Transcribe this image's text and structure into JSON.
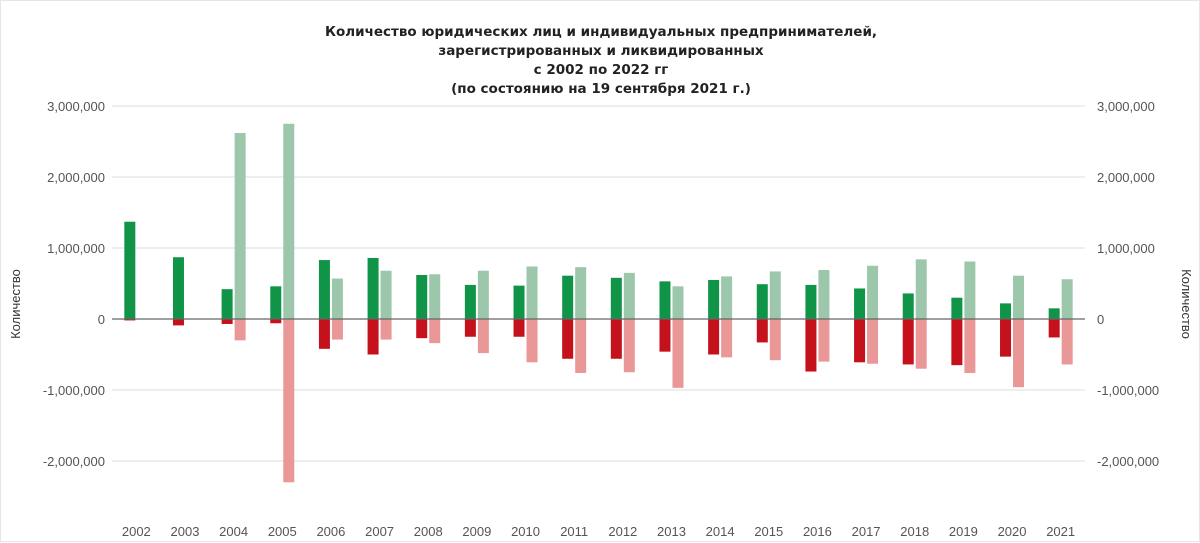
{
  "chart_data": {
    "type": "bar",
    "title_lines": [
      "Количество юридических лиц и индивидуальных предпринимателей,",
      "зарегистрированных и ликвидированных",
      "с 2002 по 2022 гг",
      "(по состоянию на 19 сентября 2021 г.)"
    ],
    "ylabel_left": "Количество",
    "ylabel_right": "Количество",
    "ylim": [
      -2800000,
      3000000
    ],
    "yticks": [
      3000000,
      2000000,
      1000000,
      0,
      -1000000,
      -2000000
    ],
    "ytick_labels": [
      "3,000,000",
      "2,000,000",
      "1,000,000",
      "0",
      "-1,000,000",
      "-2,000,000"
    ],
    "categories": [
      "2002",
      "2003",
      "2004",
      "2005",
      "2006",
      "2007",
      "2008",
      "2009",
      "2010",
      "2011",
      "2012",
      "2013",
      "2014",
      "2015",
      "2016",
      "2017",
      "2018",
      "2019",
      "2020",
      "2021"
    ],
    "grid": true,
    "legend": "none",
    "series": [
      {
        "color": "#109447",
        "values": [
          1370000,
          870000,
          420000,
          460000,
          830000,
          860000,
          620000,
          480000,
          470000,
          610000,
          580000,
          530000,
          550000,
          490000,
          480000,
          430000,
          360000,
          300000,
          220000,
          150000
        ]
      },
      {
        "color": "#c4111b",
        "values": [
          -20000,
          -90000,
          -70000,
          -60000,
          -420000,
          -500000,
          -270000,
          -250000,
          -250000,
          -560000,
          -560000,
          -460000,
          -500000,
          -330000,
          -740000,
          -610000,
          -640000,
          -650000,
          -530000,
          -260000
        ]
      },
      {
        "color": "#9cc7aa",
        "values": [
          0,
          0,
          2620000,
          2750000,
          570000,
          680000,
          630000,
          680000,
          740000,
          730000,
          650000,
          460000,
          600000,
          670000,
          690000,
          750000,
          840000,
          810000,
          610000,
          560000
        ]
      },
      {
        "color": "#ea9797",
        "values": [
          0,
          0,
          -300000,
          -2300000,
          -290000,
          -290000,
          -340000,
          -480000,
          -610000,
          -760000,
          -750000,
          -970000,
          -540000,
          -580000,
          -600000,
          -630000,
          -700000,
          -760000,
          -960000,
          -640000
        ]
      }
    ]
  }
}
